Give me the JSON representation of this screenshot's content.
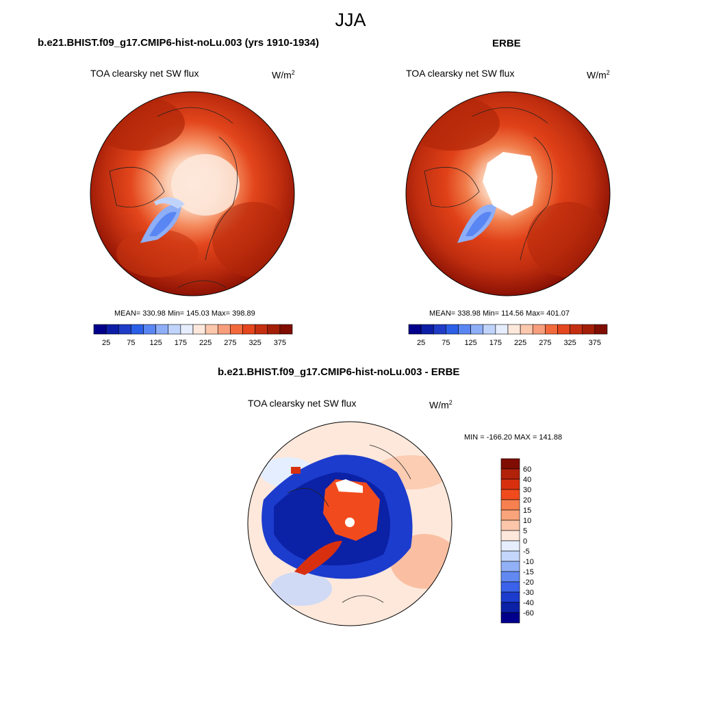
{
  "figure": {
    "season": "JJA"
  },
  "panel_model": {
    "title": "b.e21.BHIST.f09_g17.CMIP6-hist-noLu.003 (yrs 1910-1934)",
    "variable": "TOA clearsky net SW flux",
    "units_base": "W/m",
    "units_exp": "2",
    "stats": "MEAN= 330.98  Min= 145.03  Max= 398.89",
    "mean": 330.98,
    "min": 145.03,
    "max": 398.89
  },
  "panel_obs": {
    "title": "ERBE",
    "variable": "TOA clearsky net SW flux",
    "units_base": "W/m",
    "units_exp": "2",
    "stats": "MEAN= 338.98  Min= 114.56  Max= 401.07",
    "mean": 338.98,
    "min": 114.56,
    "max": 401.07
  },
  "panel_diff": {
    "title": "b.e21.BHIST.f09_g17.CMIP6-hist-noLu.003 - ERBE",
    "variable": "TOA clearsky net SW flux",
    "units_base": "W/m",
    "units_exp": "2",
    "stats": "MIN = -166.20 MAX = 141.88",
    "min": -166.2,
    "max": 141.88
  },
  "abs_colorbar": {
    "tick_labels": [
      "25",
      "75",
      "125",
      "175",
      "225",
      "275",
      "325",
      "375"
    ],
    "colors": [
      "#00008b",
      "#0d1ea6",
      "#1f3cc6",
      "#2c5fe8",
      "#5a86f3",
      "#8eaef7",
      "#c0d4fb",
      "#e6eefe",
      "#fde9dc",
      "#fbc7ad",
      "#f79e7c",
      "#f26a3c",
      "#e4461d",
      "#c52f11",
      "#a31e07",
      "#7f0d02"
    ]
  },
  "diff_colorbar": {
    "tick_labels": [
      "60",
      "40",
      "30",
      "20",
      "15",
      "10",
      "5",
      "0",
      "-5",
      "-10",
      "-15",
      "-20",
      "-30",
      "-40",
      "-60"
    ],
    "colors": [
      "#7f0d02",
      "#b2210a",
      "#d8300f",
      "#f14b1d",
      "#f6804f",
      "#f9a47b",
      "#fbc6a9",
      "#fde8db",
      "#e6eefe",
      "#c4d6fb",
      "#91b0f6",
      "#6289f2",
      "#3a62ea",
      "#1c3ccd",
      "#0b21a6",
      "#00008b"
    ]
  }
}
